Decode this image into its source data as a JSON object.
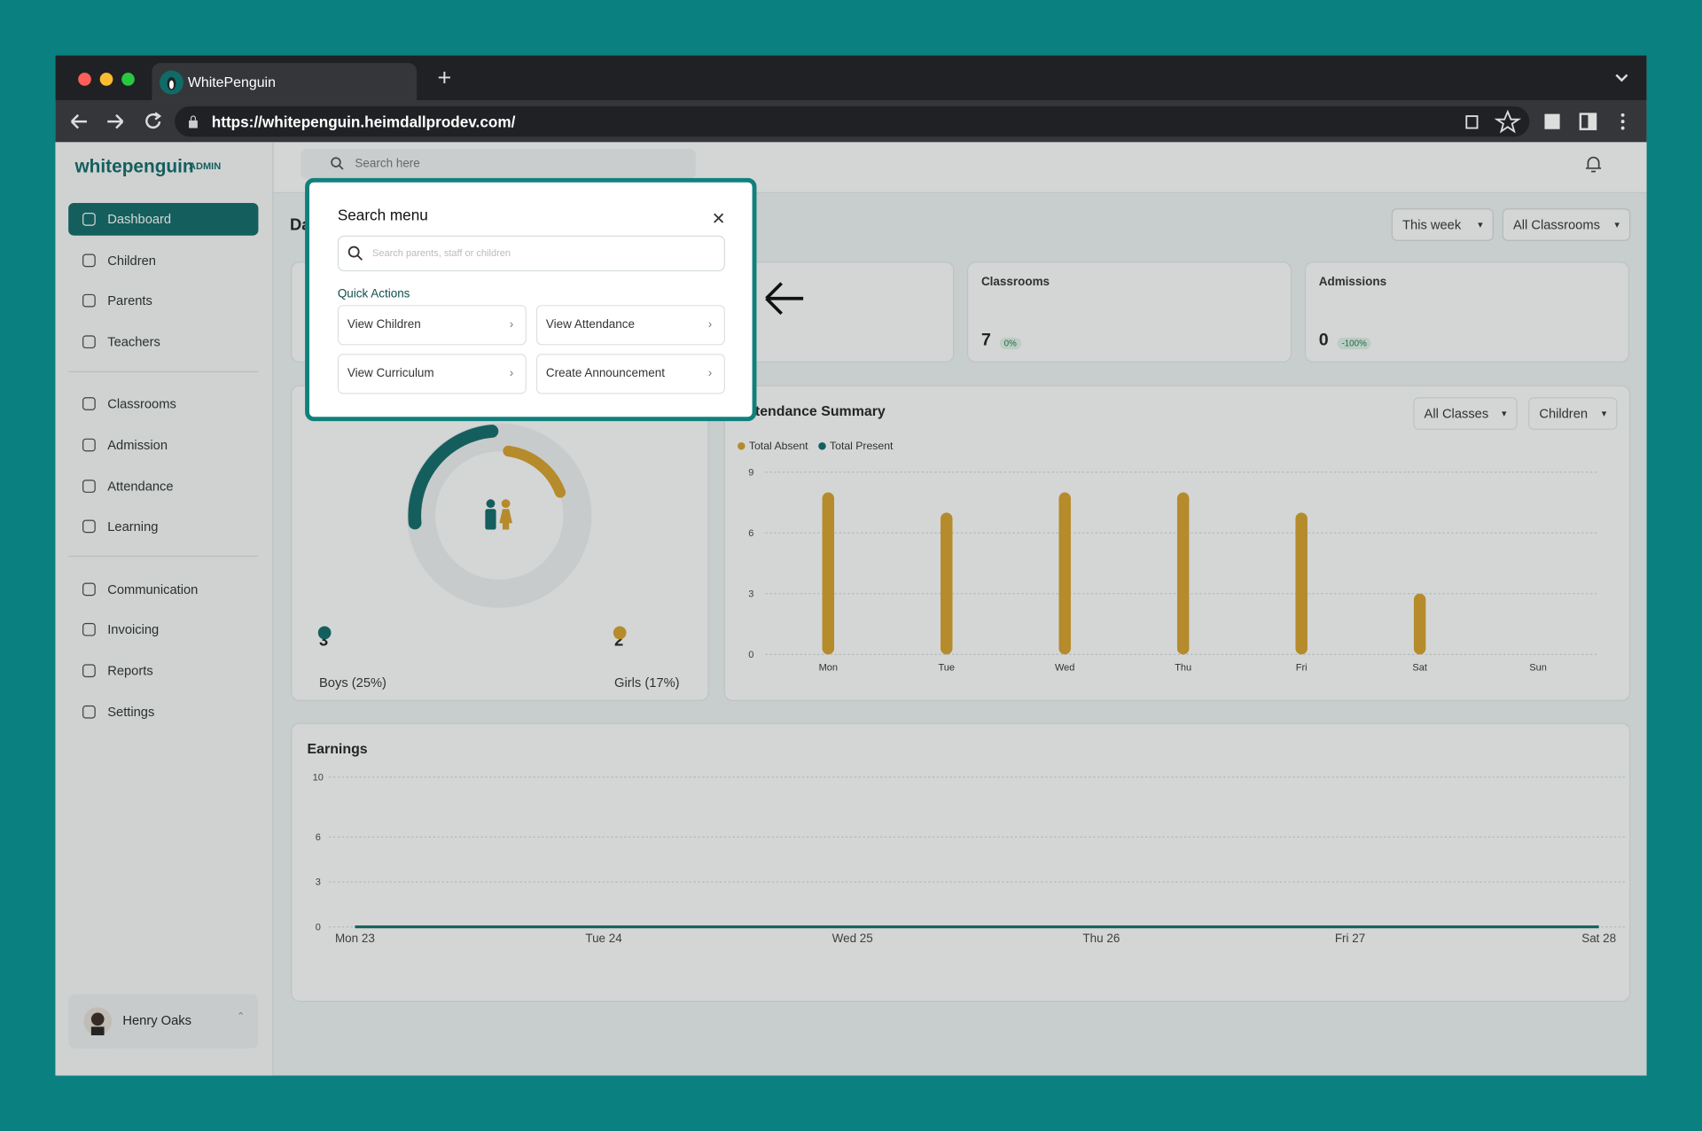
{
  "browser": {
    "tab_title": "WhitePenguin",
    "url": "https://whitepenguin.heimdallprodev.com/"
  },
  "sidebar": {
    "logo": "whitepenguin",
    "role": "ADMIN",
    "nav": [
      "Dashboard",
      "Children",
      "Parents",
      "Teachers",
      "Classrooms",
      "Admission",
      "Attendance",
      "Learning",
      "Communication",
      "Invoicing",
      "Reports",
      "Settings"
    ],
    "user": "Henry Oaks"
  },
  "topbar": {
    "search_placeholder": "Search here"
  },
  "page_title": "Dashboard",
  "filters": [
    "This week",
    "All Classrooms"
  ],
  "stats": [
    {
      "label": "Classrooms",
      "value": 7,
      "change": "0%"
    },
    {
      "label": "Admissions",
      "value": 0,
      "change": "-100%"
    }
  ],
  "gender": {
    "boys": {
      "count": 3,
      "label": "Boys (25%)",
      "percent": 25,
      "color": "#0f6b68"
    },
    "girls": {
      "count": 2,
      "label": "Girls (17%)",
      "percent": 17,
      "color": "#d9a22a"
    }
  },
  "chart_data": [
    {
      "type": "bar",
      "title": "Attendance Summary",
      "filters": [
        "All Classes",
        "Children"
      ],
      "categories": [
        "Mon",
        "Tue",
        "Wed",
        "Thu",
        "Fri",
        "Sat",
        "Sun"
      ],
      "series": [
        {
          "name": "Total Absent",
          "color": "#d9a22a",
          "values": [
            8,
            7,
            8,
            8,
            7,
            3,
            0
          ]
        },
        {
          "name": "Total Present",
          "color": "#0f6b68",
          "values": [
            0,
            0,
            0,
            0,
            0,
            0,
            0
          ]
        }
      ],
      "ylim": [
        0,
        9
      ],
      "yticks": [
        0,
        3,
        6,
        9
      ],
      "grid": true
    },
    {
      "type": "line",
      "title": "Earnings",
      "categories": [
        "Mon 23",
        "Tue 24",
        "Wed 25",
        "Thu 26",
        "Fri 27",
        "Sat 28"
      ],
      "values": [
        0,
        0,
        0,
        0,
        0,
        0
      ],
      "color": "#0f6b68",
      "ylim": [
        0,
        10
      ],
      "yticks": [
        0,
        3,
        6,
        10
      ],
      "grid": true
    }
  ],
  "modal": {
    "title": "Search menu",
    "search_placeholder": "Search parents, staff or children",
    "section": "Quick Actions",
    "actions": [
      "View Children",
      "View Attendance",
      "View Curriculum",
      "Create Announcement"
    ]
  }
}
